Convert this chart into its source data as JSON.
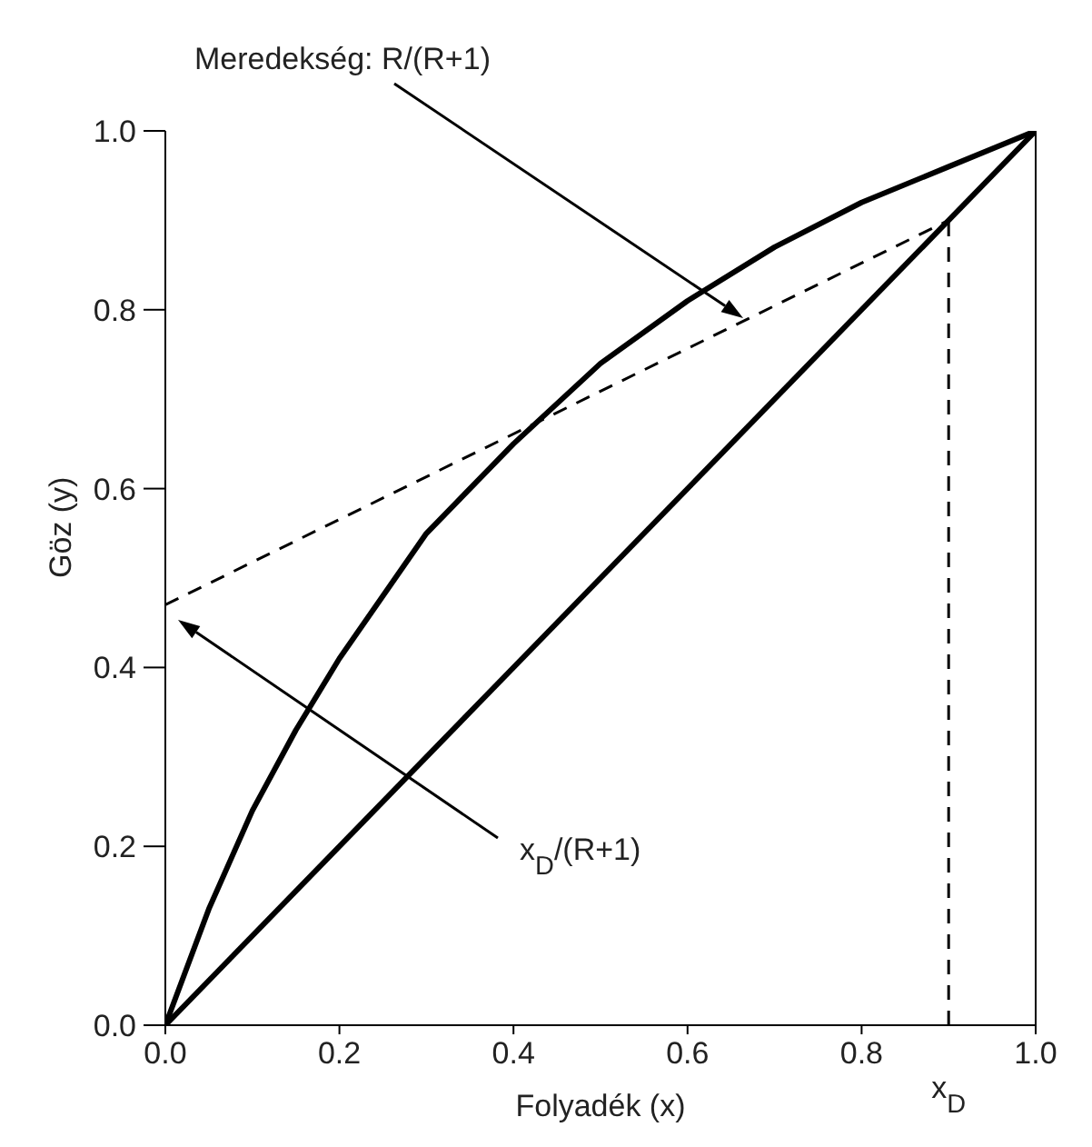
{
  "chart_data": {
    "type": "line",
    "xlabel": "Folyadék (x)",
    "ylabel": "Göz (y)",
    "xlim": [
      0,
      1
    ],
    "ylim": [
      0,
      1
    ],
    "xticks": [
      {
        "value": 0,
        "label": "0.0"
      },
      {
        "value": 0.2,
        "label": "0.2"
      },
      {
        "value": 0.4,
        "label": "0.4"
      },
      {
        "value": 0.6,
        "label": "0.6"
      },
      {
        "value": 0.8,
        "label": "0.8"
      },
      {
        "value": 1,
        "label": "1.0"
      }
    ],
    "yticks": [
      {
        "value": 0,
        "label": "0.0"
      },
      {
        "value": 0.2,
        "label": "0.2"
      },
      {
        "value": 0.4,
        "label": "0.4"
      },
      {
        "value": 0.6,
        "label": "0.6"
      },
      {
        "value": 0.8,
        "label": "0.8"
      },
      {
        "value": 1,
        "label": "1.0"
      }
    ],
    "marker": "none",
    "grid": false,
    "series": [
      {
        "color": "#000000",
        "line_style": "solid",
        "x": [
          0,
          0.05,
          0.1,
          0.15,
          0.2,
          0.3,
          0.4,
          0.5,
          0.6,
          0.7,
          0.8,
          0.9,
          1
        ],
        "values": [
          0,
          0.13,
          0.24,
          0.33,
          0.41,
          0.55,
          0.65,
          0.74,
          0.81,
          0.87,
          0.92,
          0.96,
          1
        ]
      },
      {
        "color": "#000000",
        "line_style": "solid",
        "x": [
          0,
          1
        ],
        "values": [
          0,
          1
        ]
      },
      {
        "color": "#000000",
        "line_style": "dashed",
        "x": [
          0,
          0.9
        ],
        "values": [
          0.47,
          0.9
        ]
      },
      {
        "color": "#000000",
        "line_style": "dashed",
        "x": [
          0.9,
          0.9
        ],
        "values": [
          0,
          0.9
        ]
      }
    ],
    "annotations": [
      "Meredekség: R/(R+1)",
      "x$_{D}$/(R+1)",
      {
        "text": "x$_{D}$",
        "x": 0.9,
        "y": 0
      }
    ]
  }
}
